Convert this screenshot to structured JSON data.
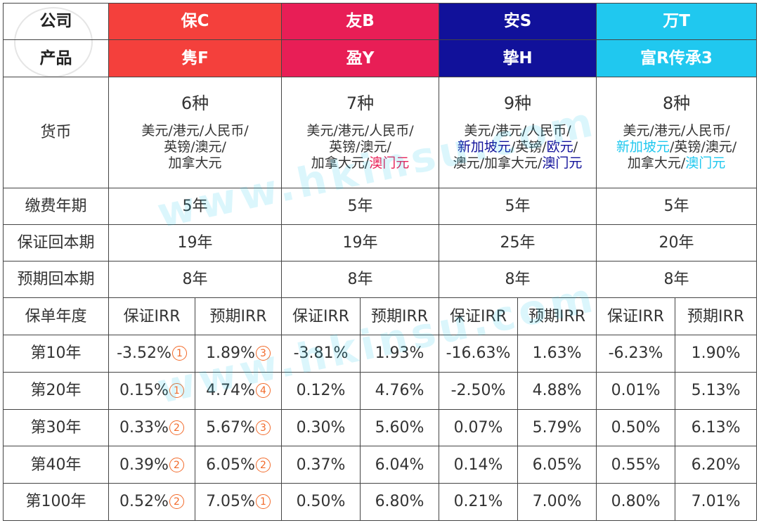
{
  "header": {
    "company_label": "公司",
    "product_label": "产品",
    "columns": [
      {
        "company": "保C",
        "product": "隽F",
        "color": "#f4403c"
      },
      {
        "company": "友B",
        "product": "盈Y",
        "color": "#e81e56"
      },
      {
        "company": "安S",
        "product": "挚H",
        "color": "#11119a"
      },
      {
        "company": "万T",
        "product": "富R传承3",
        "color": "#20c8ef"
      }
    ]
  },
  "currency": {
    "label": "货币",
    "columns": [
      {
        "count": "6种",
        "lines": [
          [
            {
              "t": "美元/港元/人民币/",
              "h": ""
            }
          ],
          [
            {
              "t": "英镑/澳元/",
              "h": ""
            }
          ],
          [
            {
              "t": "加拿大元",
              "h": ""
            }
          ]
        ]
      },
      {
        "count": "7种",
        "lines": [
          [
            {
              "t": "美元/港元/人民币/",
              "h": ""
            }
          ],
          [
            {
              "t": "英镑/澳元/",
              "h": ""
            }
          ],
          [
            {
              "t": "加拿大元/",
              "h": ""
            },
            {
              "t": "澳门元",
              "h": "pink"
            }
          ]
        ]
      },
      {
        "count": "9种",
        "lines": [
          [
            {
              "t": "美元/港元/人民币/",
              "h": ""
            }
          ],
          [
            {
              "t": "新加坡元",
              "h": "blue"
            },
            {
              "t": "/英镑/",
              "h": ""
            },
            {
              "t": "欧元",
              "h": "blue"
            },
            {
              "t": "/",
              "h": ""
            }
          ],
          [
            {
              "t": "澳元/加拿大元/",
              "h": ""
            },
            {
              "t": "澳门元",
              "h": "blue"
            }
          ]
        ]
      },
      {
        "count": "8种",
        "lines": [
          [
            {
              "t": "美元/港元/人民币/",
              "h": ""
            }
          ],
          [
            {
              "t": "新加坡元",
              "h": "cyan"
            },
            {
              "t": "/英镑/澳元/",
              "h": ""
            }
          ],
          [
            {
              "t": "加拿大元/",
              "h": ""
            },
            {
              "t": "澳门元",
              "h": "cyan"
            }
          ]
        ]
      }
    ]
  },
  "rows": [
    {
      "label": "缴费年期",
      "values": [
        "5年",
        "5年",
        "5年",
        "5年"
      ]
    },
    {
      "label": "保证回本期",
      "values": [
        "19年",
        "19年",
        "25年",
        "20年"
      ]
    },
    {
      "label": "预期回本期",
      "values": [
        "8年",
        "8年",
        "8年",
        "8年"
      ]
    }
  ],
  "irr": {
    "label": "保单年度",
    "sub_headers": [
      "保证IRR",
      "预期IRR",
      "保证IRR",
      "预期IRR",
      "保证IRR",
      "预期IRR",
      "保证IRR",
      "预期IRR"
    ],
    "rows": [
      {
        "year": "第10年",
        "cells": [
          {
            "v": "-3.52%",
            "r": "1"
          },
          {
            "v": "1.89%",
            "r": "3"
          },
          {
            "v": "-3.81%",
            "r": ""
          },
          {
            "v": "1.93%",
            "r": ""
          },
          {
            "v": "-16.63%",
            "r": ""
          },
          {
            "v": "1.63%",
            "r": ""
          },
          {
            "v": "-6.23%",
            "r": ""
          },
          {
            "v": "1.90%",
            "r": ""
          }
        ]
      },
      {
        "year": "第20年",
        "cells": [
          {
            "v": "0.15%",
            "r": "1"
          },
          {
            "v": "4.74%",
            "r": "4"
          },
          {
            "v": "0.12%",
            "r": ""
          },
          {
            "v": "4.76%",
            "r": ""
          },
          {
            "v": "-2.50%",
            "r": ""
          },
          {
            "v": "4.88%",
            "r": ""
          },
          {
            "v": "0.01%",
            "r": ""
          },
          {
            "v": "5.13%",
            "r": ""
          }
        ]
      },
      {
        "year": "第30年",
        "cells": [
          {
            "v": "0.33%",
            "r": "2"
          },
          {
            "v": "5.67%",
            "r": "3"
          },
          {
            "v": "0.30%",
            "r": ""
          },
          {
            "v": "5.60%",
            "r": ""
          },
          {
            "v": "0.07%",
            "r": ""
          },
          {
            "v": "5.79%",
            "r": ""
          },
          {
            "v": "0.50%",
            "r": ""
          },
          {
            "v": "6.13%",
            "r": ""
          }
        ]
      },
      {
        "year": "第40年",
        "cells": [
          {
            "v": "0.39%",
            "r": "2"
          },
          {
            "v": "6.05%",
            "r": "2"
          },
          {
            "v": "0.37%",
            "r": ""
          },
          {
            "v": "6.04%",
            "r": ""
          },
          {
            "v": "0.14%",
            "r": ""
          },
          {
            "v": "6.05%",
            "r": ""
          },
          {
            "v": "0.55%",
            "r": ""
          },
          {
            "v": "6.20%",
            "r": ""
          }
        ]
      },
      {
        "year": "第100年",
        "cells": [
          {
            "v": "0.52%",
            "r": "2"
          },
          {
            "v": "7.05%",
            "r": "1"
          },
          {
            "v": "0.50%",
            "r": ""
          },
          {
            "v": "6.80%",
            "r": ""
          },
          {
            "v": "0.21%",
            "r": ""
          },
          {
            "v": "7.00%",
            "r": ""
          },
          {
            "v": "0.80%",
            "r": ""
          },
          {
            "v": "7.01%",
            "r": ""
          }
        ]
      }
    ]
  },
  "watermark": "www.hkinsu.com",
  "highlight_colors": {
    "pink": "#e81e56",
    "blue": "#11119a",
    "cyan": "#20c8ef",
    "rank": "#f26a2a"
  }
}
